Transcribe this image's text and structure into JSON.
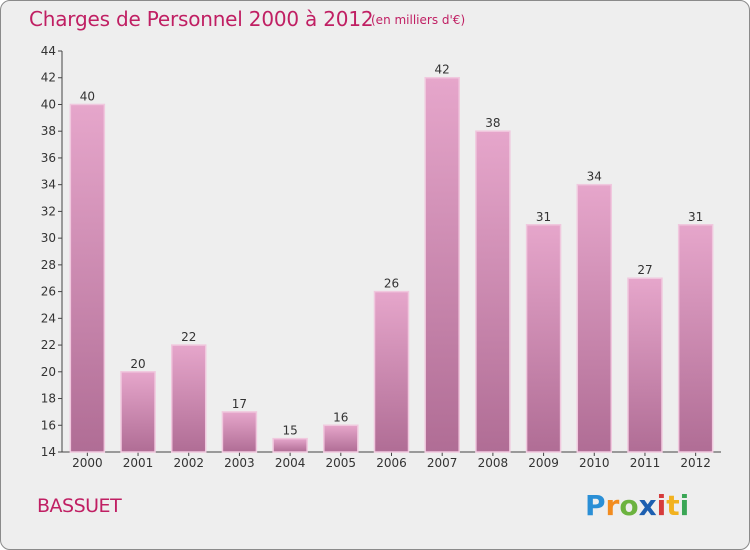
{
  "header": {
    "title": "Charges de Personnel 2000 à 2012",
    "subtitle": "(en milliers d'€)"
  },
  "footer": {
    "town": "BASSUET",
    "logo_letters": [
      "P",
      "r",
      "o",
      "x",
      "i",
      "t",
      "i"
    ],
    "logo_colors": [
      "#2a8fd6",
      "#f28c1f",
      "#6cb33f",
      "#1d5fb0",
      "#d63b3b",
      "#f2b21f",
      "#3aa655"
    ]
  },
  "chart_data": {
    "type": "bar",
    "title": "Charges de Personnel 2000 à 2012",
    "subtitle": "(en milliers d'€)",
    "categories": [
      "2000",
      "2001",
      "2002",
      "2003",
      "2004",
      "2005",
      "2006",
      "2007",
      "2008",
      "2009",
      "2010",
      "2011",
      "2012"
    ],
    "values": [
      40,
      20,
      22,
      17,
      15,
      16,
      26,
      42,
      38,
      31,
      34,
      27,
      31
    ],
    "ylim": [
      14,
      44
    ],
    "yticks": [
      14,
      16,
      18,
      20,
      22,
      24,
      26,
      28,
      30,
      32,
      34,
      36,
      38,
      40,
      42,
      44
    ],
    "grid": false,
    "bar_color": "#d88db6",
    "bar_color_dark": "#b8678f"
  }
}
